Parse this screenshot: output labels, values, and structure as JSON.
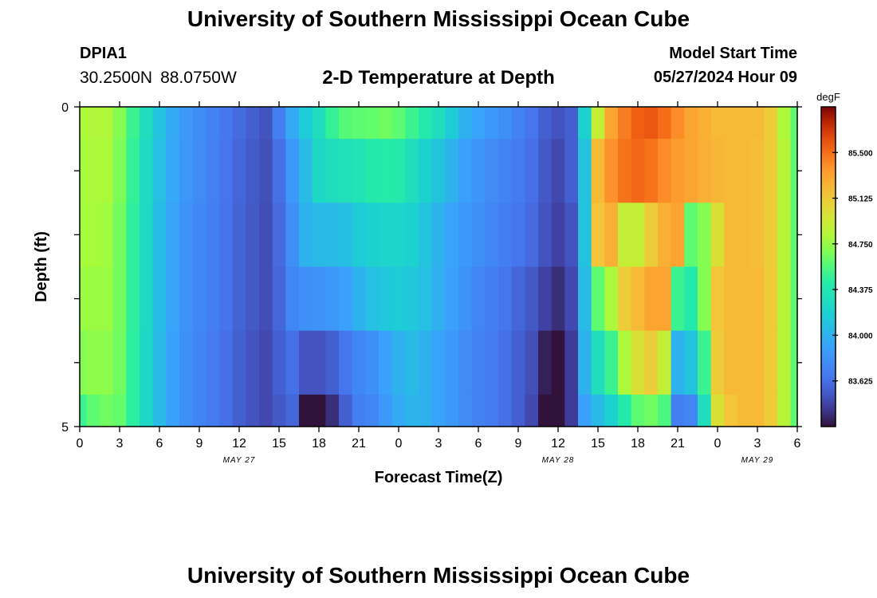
{
  "header": {
    "title": "University of Southern Mississippi Ocean Cube",
    "station_id": "DPIA1",
    "latitude": "30.2500N",
    "longitude": "88.0750W",
    "chart_title": "2-D Temperature at Depth",
    "model_start_label": "Model Start Time",
    "model_start_value": "05/27/2024 Hour 09"
  },
  "footer": {
    "title": "University of Southern Mississippi Ocean Cube"
  },
  "chart_data": {
    "type": "heatmap",
    "title": "2-D Temperature at Depth",
    "xlabel": "Forecast Time(Z)",
    "ylabel": "Depth (ft)",
    "x_hours": [
      0,
      1,
      2,
      3,
      4,
      5,
      6,
      7,
      8,
      9,
      10,
      11,
      12,
      13,
      14,
      15,
      16,
      17,
      18,
      19,
      20,
      21,
      22,
      23,
      24,
      25,
      26,
      27,
      28,
      29,
      30,
      31,
      32,
      33,
      34,
      35,
      36,
      37,
      38,
      39,
      40,
      41,
      42,
      43,
      44,
      45,
      46,
      47,
      48,
      49,
      50,
      51,
      52,
      53,
      54
    ],
    "x_tick_labels": [
      "0",
      "3",
      "6",
      "9",
      "12",
      "15",
      "18",
      "21",
      "0",
      "3",
      "6",
      "9",
      "12",
      "15",
      "18",
      "21",
      "0",
      "3",
      "6"
    ],
    "date_labels": [
      {
        "label": "MAY 27",
        "hour": 12
      },
      {
        "label": "MAY 28",
        "hour": 36
      },
      {
        "label": "MAY 29",
        "hour": 51
      }
    ],
    "depth_ft": [
      0,
      1,
      2,
      3,
      4,
      5
    ],
    "y_tick_labels": [
      "0",
      "5"
    ],
    "ylim": [
      0,
      5
    ],
    "xlim": [
      0,
      54
    ],
    "depth_bands": [
      {
        "depth_range": [
          0.0,
          0.5
        ],
        "values": [
          84.8,
          84.82,
          84.82,
          84.7,
          84.5,
          84.3,
          84.1,
          83.95,
          83.85,
          83.78,
          83.72,
          83.66,
          83.6,
          83.55,
          83.5,
          83.7,
          83.95,
          84.15,
          84.3,
          84.48,
          84.58,
          84.6,
          84.62,
          84.65,
          84.6,
          84.5,
          84.4,
          84.3,
          84.15,
          84.0,
          83.92,
          83.85,
          83.8,
          83.72,
          83.65,
          83.55,
          83.5,
          83.55,
          84.2,
          84.9,
          85.3,
          85.45,
          85.55,
          85.58,
          85.5,
          85.4,
          85.3,
          85.25,
          85.2,
          85.2,
          85.2,
          85.2,
          85.1,
          84.8,
          84.6
        ]
      },
      {
        "depth_range": [
          0.5,
          1.5
        ],
        "values": [
          84.78,
          84.8,
          84.8,
          84.68,
          84.48,
          84.28,
          84.08,
          83.94,
          83.84,
          83.77,
          83.71,
          83.65,
          83.58,
          83.53,
          83.48,
          83.62,
          83.85,
          84.05,
          84.25,
          84.3,
          84.32,
          84.35,
          84.4,
          84.42,
          84.4,
          84.3,
          84.2,
          84.1,
          84.0,
          83.9,
          83.83,
          83.77,
          83.73,
          83.68,
          83.62,
          83.52,
          83.45,
          83.55,
          84.1,
          85.2,
          85.38,
          85.48,
          85.52,
          85.48,
          85.4,
          85.35,
          85.3,
          85.25,
          85.22,
          85.2,
          85.2,
          85.18,
          85.1,
          84.85,
          84.6
        ]
      },
      {
        "depth_range": [
          1.5,
          2.5
        ],
        "values": [
          84.78,
          84.78,
          84.76,
          84.66,
          84.46,
          84.26,
          84.06,
          83.92,
          83.82,
          83.76,
          83.7,
          83.64,
          83.57,
          83.52,
          83.47,
          83.6,
          83.8,
          84.0,
          84.05,
          84.05,
          84.07,
          84.15,
          84.2,
          84.22,
          84.22,
          84.2,
          84.1,
          84.0,
          83.92,
          83.85,
          83.8,
          83.75,
          83.7,
          83.65,
          83.6,
          83.5,
          83.42,
          83.5,
          84.1,
          85.15,
          85.25,
          84.9,
          84.9,
          85.1,
          85.25,
          85.3,
          84.6,
          84.7,
          85.0,
          85.2,
          85.2,
          85.18,
          85.1,
          84.85,
          84.6
        ]
      },
      {
        "depth_range": [
          2.5,
          3.5
        ],
        "values": [
          84.75,
          84.75,
          84.75,
          84.66,
          84.46,
          84.26,
          84.06,
          83.92,
          83.82,
          83.76,
          83.7,
          83.64,
          83.57,
          83.52,
          83.47,
          83.58,
          83.75,
          83.8,
          83.82,
          83.85,
          83.9,
          84.0,
          84.08,
          84.12,
          84.15,
          84.12,
          84.08,
          83.98,
          83.9,
          83.82,
          83.75,
          83.7,
          83.65,
          83.58,
          83.52,
          83.42,
          83.35,
          83.45,
          84.05,
          84.6,
          84.8,
          85.1,
          85.2,
          85.3,
          85.3,
          84.5,
          84.4,
          84.7,
          85.15,
          85.2,
          85.2,
          85.2,
          85.12,
          84.85,
          84.6
        ]
      },
      {
        "depth_range": [
          3.5,
          4.5
        ],
        "values": [
          84.7,
          84.72,
          84.72,
          84.65,
          84.45,
          84.25,
          84.05,
          83.9,
          83.8,
          83.74,
          83.68,
          83.62,
          83.55,
          83.5,
          83.45,
          83.55,
          83.62,
          83.5,
          83.5,
          83.55,
          83.65,
          83.75,
          83.8,
          83.9,
          84.0,
          84.05,
          84.0,
          83.92,
          83.85,
          83.78,
          83.72,
          83.68,
          83.62,
          83.55,
          83.48,
          83.3,
          83.25,
          83.4,
          84.0,
          84.3,
          84.5,
          84.8,
          85.0,
          85.1,
          84.9,
          84.0,
          84.1,
          84.5,
          85.1,
          85.2,
          85.2,
          85.2,
          85.12,
          84.85,
          84.6
        ]
      },
      {
        "depth_range": [
          4.5,
          5.0
        ],
        "values": [
          84.5,
          84.6,
          84.65,
          84.62,
          84.45,
          84.25,
          84.05,
          83.9,
          83.8,
          83.74,
          83.68,
          83.62,
          83.55,
          83.5,
          83.45,
          83.52,
          83.58,
          83.2,
          83.1,
          83.35,
          83.55,
          83.7,
          83.75,
          83.85,
          83.95,
          84.02,
          84.0,
          83.92,
          83.85,
          83.78,
          83.72,
          83.68,
          83.62,
          83.55,
          83.45,
          83.2,
          83.15,
          83.4,
          83.9,
          84.05,
          84.2,
          84.4,
          84.6,
          84.65,
          84.55,
          83.7,
          83.75,
          84.3,
          85.0,
          85.15,
          85.2,
          85.2,
          85.12,
          84.85,
          84.6
        ]
      }
    ],
    "colorbar": {
      "unit": "degF",
      "min": 83.25,
      "max": 85.875,
      "tick_labels": [
        "83.625",
        "84.000",
        "84.375",
        "84.750",
        "85.125",
        "85.500"
      ],
      "tick_values": [
        83.625,
        84.0,
        84.375,
        84.75,
        85.125,
        85.5
      ]
    },
    "grid": false,
    "legend": "right"
  }
}
